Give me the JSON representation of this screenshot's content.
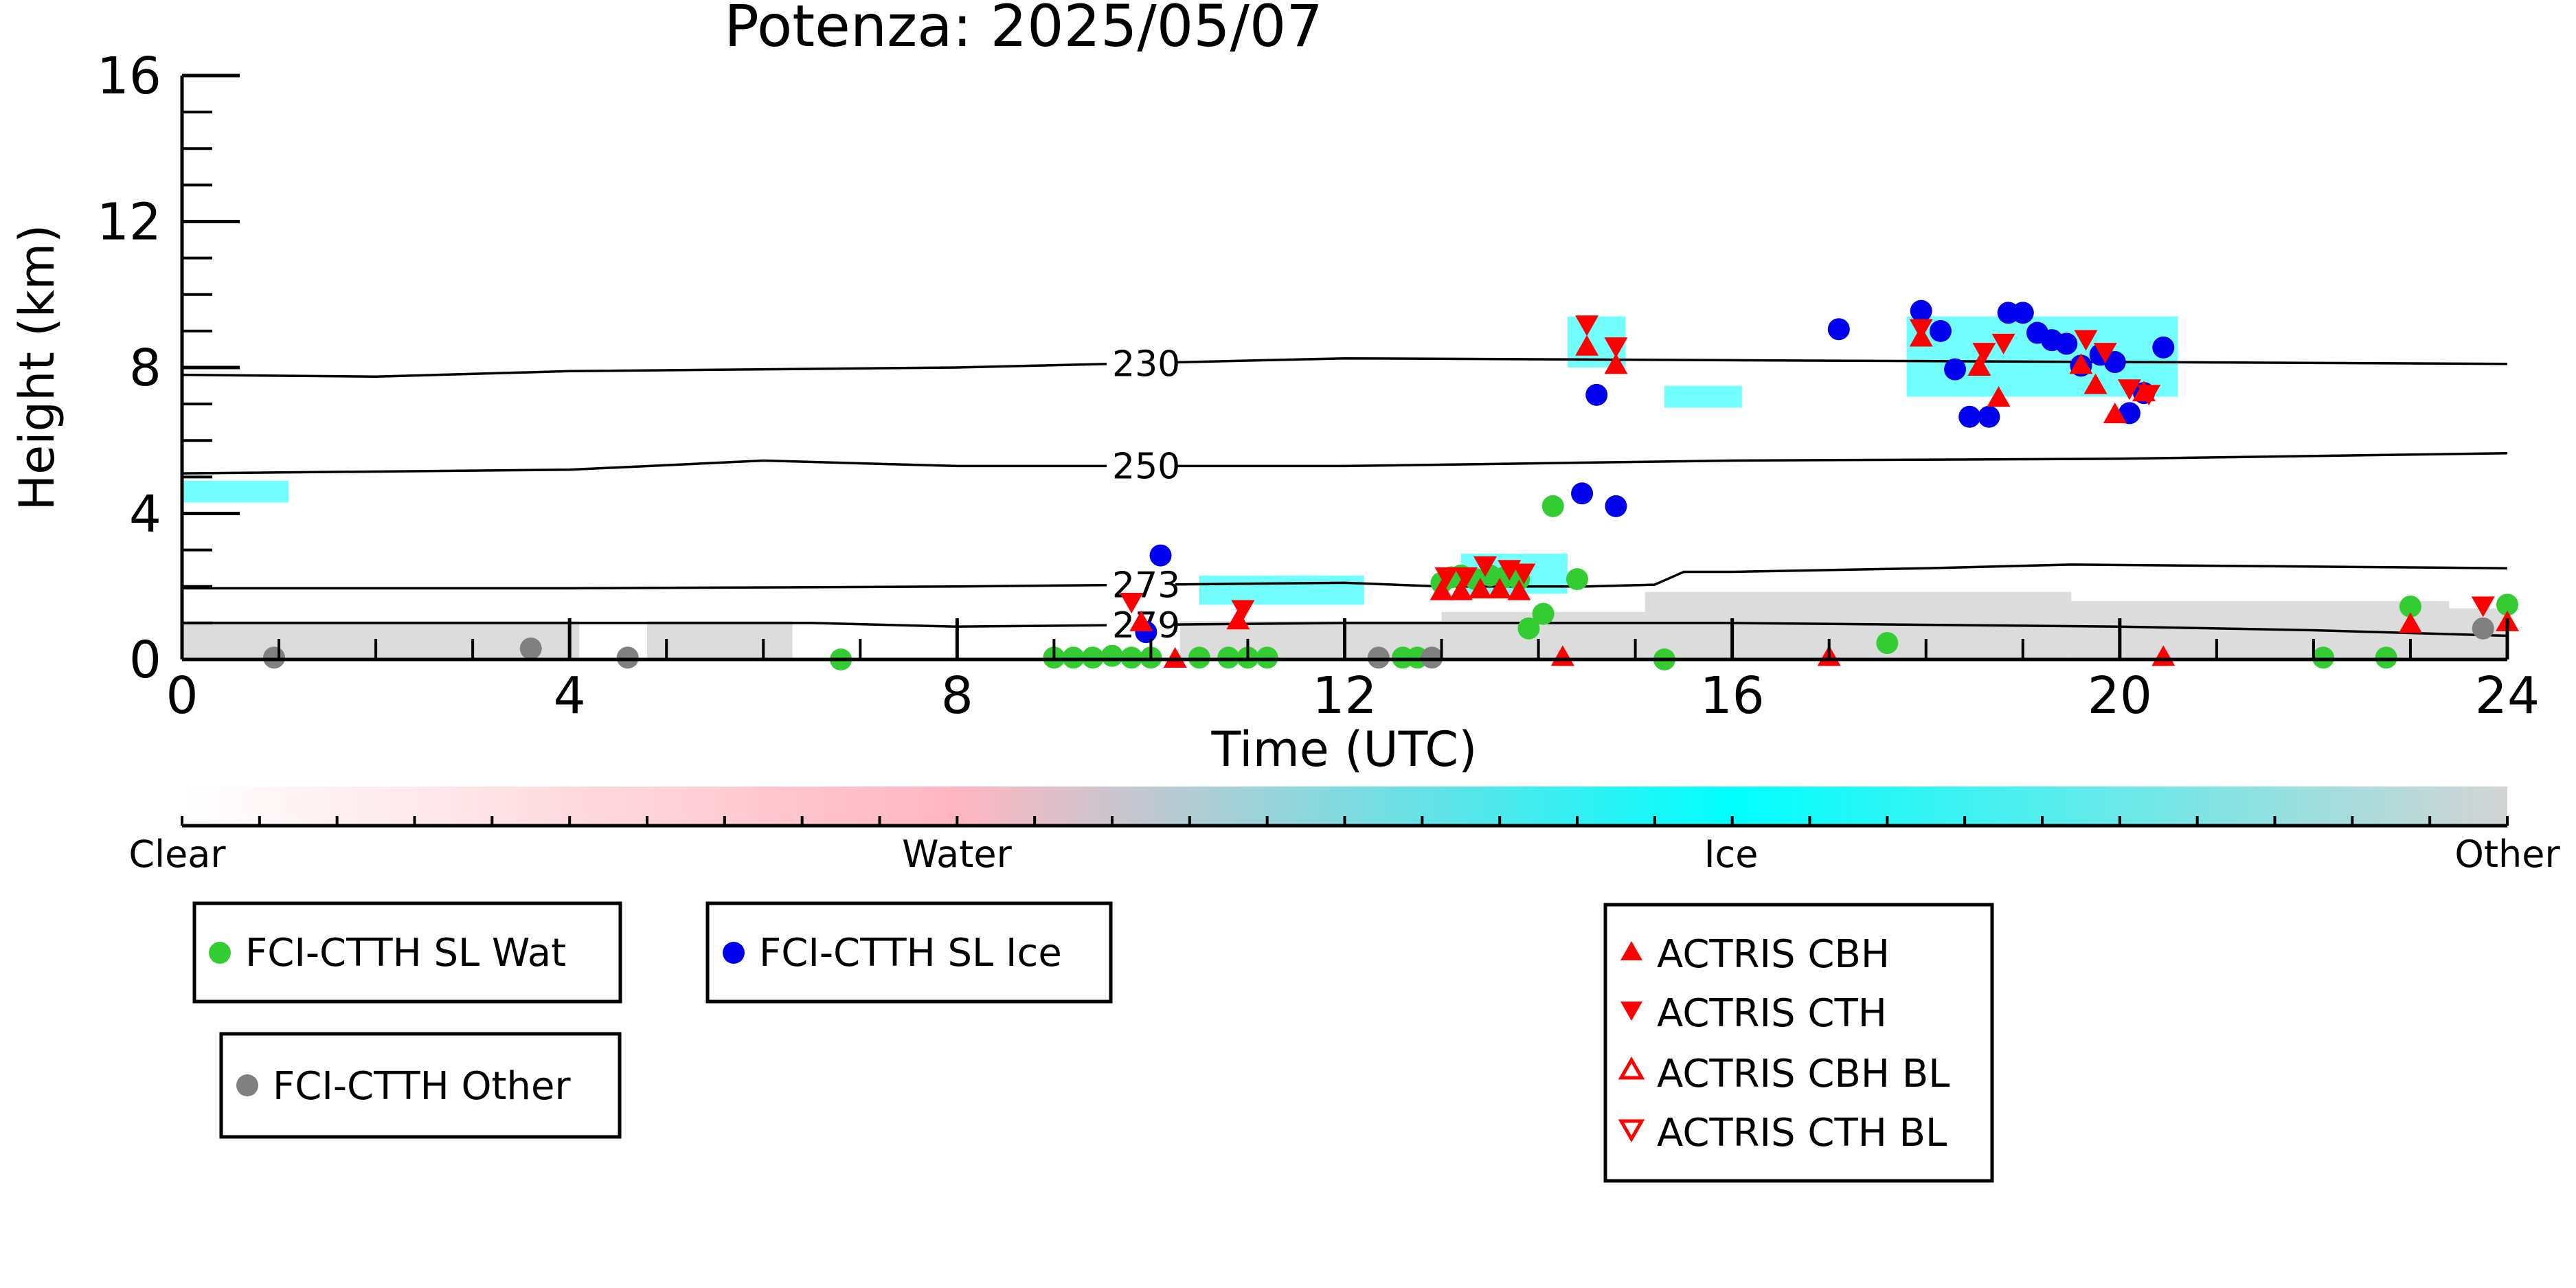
{
  "chart_data": {
    "type": "scatter",
    "title": "Potenza: 2025/05/07",
    "xlabel": "Time (UTC)",
    "ylabel": "Height (km)",
    "xlim": [
      0,
      24
    ],
    "ylim": [
      0,
      16
    ],
    "xticks": [
      0,
      4,
      8,
      12,
      16,
      20,
      24
    ],
    "yticks": [
      0,
      4,
      8,
      12,
      16
    ],
    "grid": false,
    "contours": [
      {
        "label": "230",
        "label_x": 9.6,
        "points": [
          [
            0,
            7.8
          ],
          [
            2,
            7.75
          ],
          [
            4,
            7.9
          ],
          [
            8,
            8.0
          ],
          [
            12,
            8.25
          ],
          [
            16,
            8.2
          ],
          [
            20,
            8.15
          ],
          [
            24,
            8.1
          ]
        ]
      },
      {
        "label": "250",
        "label_x": 9.6,
        "points": [
          [
            0,
            5.1
          ],
          [
            4,
            5.2
          ],
          [
            6,
            5.45
          ],
          [
            8,
            5.3
          ],
          [
            12,
            5.3
          ],
          [
            16,
            5.45
          ],
          [
            20,
            5.5
          ],
          [
            24,
            5.65
          ]
        ]
      },
      {
        "label": "273",
        "label_x": 9.6,
        "points": [
          [
            0,
            1.95
          ],
          [
            4,
            1.95
          ],
          [
            8,
            2.0
          ],
          [
            10,
            2.05
          ],
          [
            12,
            2.1
          ],
          [
            13,
            2.0
          ],
          [
            14.5,
            2.0
          ],
          [
            15.2,
            2.05
          ],
          [
            15.5,
            2.4
          ],
          [
            16,
            2.4
          ],
          [
            18,
            2.5
          ],
          [
            19.5,
            2.6
          ],
          [
            24,
            2.5
          ]
        ]
      },
      {
        "label": "279",
        "label_x": 9.6,
        "points": [
          [
            0,
            1.0
          ],
          [
            4,
            1.0
          ],
          [
            6.5,
            1.0
          ],
          [
            8,
            0.9
          ],
          [
            10,
            0.95
          ],
          [
            12,
            1.0
          ],
          [
            16,
            1.0
          ],
          [
            20,
            0.9
          ],
          [
            22,
            0.8
          ],
          [
            24,
            0.65
          ]
        ]
      }
    ],
    "series": [
      {
        "name": "FCI-CTTH SL Wat",
        "marker": "circle",
        "color": "#33cc33",
        "points": [
          [
            6.8,
            0.0
          ],
          [
            9.0,
            0.05
          ],
          [
            9.2,
            0.05
          ],
          [
            9.4,
            0.05
          ],
          [
            9.6,
            0.1
          ],
          [
            9.8,
            0.05
          ],
          [
            10.0,
            0.05
          ],
          [
            10.5,
            0.05
          ],
          [
            10.8,
            0.05
          ],
          [
            11.0,
            0.05
          ],
          [
            11.2,
            0.05
          ],
          [
            12.6,
            0.05
          ],
          [
            12.75,
            0.05
          ],
          [
            13.0,
            2.1
          ],
          [
            13.1,
            2.25
          ],
          [
            13.2,
            2.3
          ],
          [
            13.35,
            2.2
          ],
          [
            13.5,
            2.3
          ],
          [
            13.65,
            2.25
          ],
          [
            13.8,
            2.2
          ],
          [
            13.9,
            0.85
          ],
          [
            14.05,
            1.25
          ],
          [
            14.15,
            4.2
          ],
          [
            14.4,
            2.2
          ],
          [
            15.3,
            0.0
          ],
          [
            17.6,
            0.45
          ],
          [
            22.1,
            0.05
          ],
          [
            22.75,
            0.05
          ],
          [
            23.0,
            1.45
          ],
          [
            24.0,
            1.5
          ]
        ]
      },
      {
        "name": "FCI-CTTH SL Ice",
        "marker": "circle",
        "color": "#0000ee",
        "points": [
          [
            9.95,
            0.75
          ],
          [
            10.1,
            2.85
          ],
          [
            14.45,
            4.55
          ],
          [
            14.6,
            7.25
          ],
          [
            14.8,
            4.2
          ],
          [
            17.1,
            9.05
          ],
          [
            17.95,
            9.55
          ],
          [
            18.15,
            9.0
          ],
          [
            18.3,
            7.95
          ],
          [
            18.45,
            6.65
          ],
          [
            18.65,
            6.65
          ],
          [
            18.85,
            9.5
          ],
          [
            19.0,
            9.5
          ],
          [
            19.15,
            8.95
          ],
          [
            19.3,
            8.75
          ],
          [
            19.45,
            8.65
          ],
          [
            19.6,
            8.05
          ],
          [
            19.8,
            8.35
          ],
          [
            19.95,
            8.15
          ],
          [
            20.1,
            6.75
          ],
          [
            20.25,
            7.3
          ],
          [
            20.45,
            8.55
          ]
        ]
      },
      {
        "name": "FCI-CTTH Other",
        "marker": "circle",
        "color": "#808080",
        "points": [
          [
            0.95,
            0.05
          ],
          [
            3.6,
            0.3
          ],
          [
            4.6,
            0.05
          ],
          [
            12.35,
            0.05
          ],
          [
            12.9,
            0.05
          ],
          [
            23.75,
            0.85
          ]
        ]
      },
      {
        "name": "ACTRIS CBH",
        "marker": "triangle-up",
        "color": "#ff0000",
        "points": [
          [
            9.9,
            1.0
          ],
          [
            10.25,
            0.0
          ],
          [
            10.9,
            1.05
          ],
          [
            13.0,
            1.85
          ],
          [
            13.2,
            1.85
          ],
          [
            13.4,
            1.9
          ],
          [
            13.6,
            1.9
          ],
          [
            13.8,
            1.85
          ],
          [
            14.25,
            0.05
          ],
          [
            14.5,
            8.55
          ],
          [
            14.8,
            8.05
          ],
          [
            17.0,
            0.05
          ],
          [
            17.95,
            8.8
          ],
          [
            18.55,
            8.0
          ],
          [
            18.75,
            7.15
          ],
          [
            19.6,
            8.05
          ],
          [
            19.75,
            7.5
          ],
          [
            19.95,
            6.7
          ],
          [
            20.25,
            7.3
          ],
          [
            20.45,
            0.05
          ],
          [
            23.0,
            0.95
          ],
          [
            24.0,
            1.0
          ]
        ]
      },
      {
        "name": "ACTRIS CTH",
        "marker": "triangle-down",
        "color": "#ff0000",
        "points": [
          [
            9.8,
            1.6
          ],
          [
            10.95,
            1.4
          ],
          [
            13.05,
            2.3
          ],
          [
            13.25,
            2.3
          ],
          [
            13.45,
            2.6
          ],
          [
            13.7,
            2.5
          ],
          [
            13.85,
            2.4
          ],
          [
            14.5,
            9.2
          ],
          [
            14.8,
            8.6
          ],
          [
            17.95,
            9.1
          ],
          [
            18.6,
            8.45
          ],
          [
            18.8,
            8.7
          ],
          [
            19.65,
            8.8
          ],
          [
            19.85,
            8.45
          ],
          [
            20.1,
            7.45
          ],
          [
            20.3,
            7.3
          ],
          [
            23.75,
            1.5
          ]
        ]
      },
      {
        "name": "ACTRIS CBH BL",
        "marker": "triangle-up-open",
        "color": "#ff0000",
        "points": []
      },
      {
        "name": "ACTRIS CTH BL",
        "marker": "triangle-down-open",
        "color": "#ff0000",
        "points": []
      }
    ],
    "colorbar": {
      "labels": [
        "Clear",
        "Water",
        "Ice",
        "Other"
      ],
      "label_positions": [
        0,
        0.333,
        0.667,
        1
      ],
      "colors": [
        "#ffffff",
        "#ffb6c1",
        "#00ffff",
        "#d3d3d3"
      ]
    },
    "legends": [
      {
        "entries": [
          "FCI-CTTH SL Wat"
        ]
      },
      {
        "entries": [
          "FCI-CTTH SL Ice"
        ]
      },
      {
        "entries": [
          "FCI-CTTH Other"
        ]
      },
      {
        "entries": [
          "ACTRIS CBH",
          "ACTRIS CTH",
          "ACTRIS CBH BL",
          "ACTRIS CTH BL"
        ]
      }
    ]
  }
}
